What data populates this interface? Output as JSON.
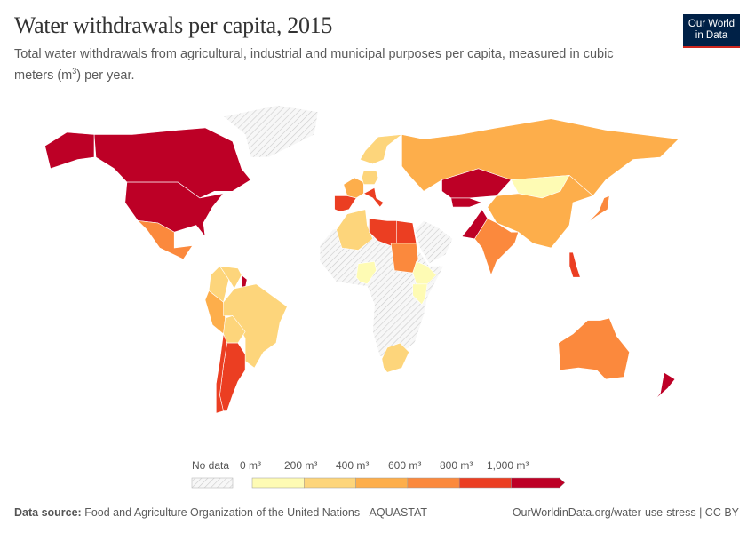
{
  "header": {
    "title": "Water withdrawals per capita, 2015",
    "subtitle_pre": "Total water withdrawals from agricultural, industrial and municipal purposes per capita, measured in cubic meters (m",
    "subtitle_sup": "3",
    "subtitle_post": ") per year."
  },
  "logo": {
    "line1": "Our World",
    "line2": "in Data",
    "bg": "#002147",
    "accent": "#ce261e"
  },
  "footer": {
    "source_label": "Data source:",
    "source": "Food and Agriculture Organization of the United Nations - AQUASTAT",
    "link": "OurWorldinData.org/water-use-stress | CC BY"
  },
  "chart_data": {
    "type": "choropleth",
    "title": "Water withdrawals per capita, 2015",
    "legend": {
      "no_data_label": "No data",
      "ticks": [
        "0 m³",
        "200 m³",
        "400 m³",
        "600 m³",
        "800 m³",
        "1,000 m³"
      ],
      "bins": [
        {
          "range": [
            0,
            200
          ],
          "color": "#fefbb4"
        },
        {
          "range": [
            200,
            400
          ],
          "color": "#fdd57b"
        },
        {
          "range": [
            400,
            600
          ],
          "color": "#fdae4b"
        },
        {
          "range": [
            600,
            800
          ],
          "color": "#fb893d"
        },
        {
          "range": [
            800,
            1000
          ],
          "color": "#eb3e22"
        },
        {
          "range": [
            1000,
            null
          ],
          "color": "#bd0026"
        }
      ],
      "no_data_color": "#e6e6e6"
    },
    "countries": [
      {
        "name": "Canada",
        "bin": 5
      },
      {
        "name": "United States",
        "bin": 5
      },
      {
        "name": "Mexico",
        "bin": 3
      },
      {
        "name": "Greenland",
        "bin": null
      },
      {
        "name": "Colombia",
        "bin": 1
      },
      {
        "name": "Venezuela",
        "bin": 1
      },
      {
        "name": "Guyana",
        "bin": 5
      },
      {
        "name": "Brazil",
        "bin": 1
      },
      {
        "name": "Peru",
        "bin": 2
      },
      {
        "name": "Bolivia",
        "bin": 1
      },
      {
        "name": "Argentina",
        "bin": 4
      },
      {
        "name": "Chile",
        "bin": 4
      },
      {
        "name": "Russia",
        "bin": 2
      },
      {
        "name": "Kazakhstan",
        "bin": 5
      },
      {
        "name": "Mongolia",
        "bin": 0
      },
      {
        "name": "China",
        "bin": 2
      },
      {
        "name": "India",
        "bin": 3
      },
      {
        "name": "Pakistan",
        "bin": 5
      },
      {
        "name": "Japan",
        "bin": 3
      },
      {
        "name": "Philippines",
        "bin": 4
      },
      {
        "name": "Spain",
        "bin": 4
      },
      {
        "name": "France",
        "bin": 2
      },
      {
        "name": "Italy",
        "bin": 4
      },
      {
        "name": "Germany",
        "bin": 1
      },
      {
        "name": "Scandinavia",
        "bin": 1
      },
      {
        "name": "Algeria",
        "bin": 1
      },
      {
        "name": "Libya",
        "bin": 4
      },
      {
        "name": "Egypt",
        "bin": 4
      },
      {
        "name": "Sudan",
        "bin": 3
      },
      {
        "name": "Nigeria",
        "bin": 0
      },
      {
        "name": "Ethiopia",
        "bin": 0
      },
      {
        "name": "South Africa",
        "bin": 1
      },
      {
        "name": "Australia",
        "bin": 3
      },
      {
        "name": "New Zealand",
        "bin": 5
      },
      {
        "name": "Africa (other)",
        "bin": null
      },
      {
        "name": "Saudi Arabia",
        "bin": null
      }
    ]
  }
}
